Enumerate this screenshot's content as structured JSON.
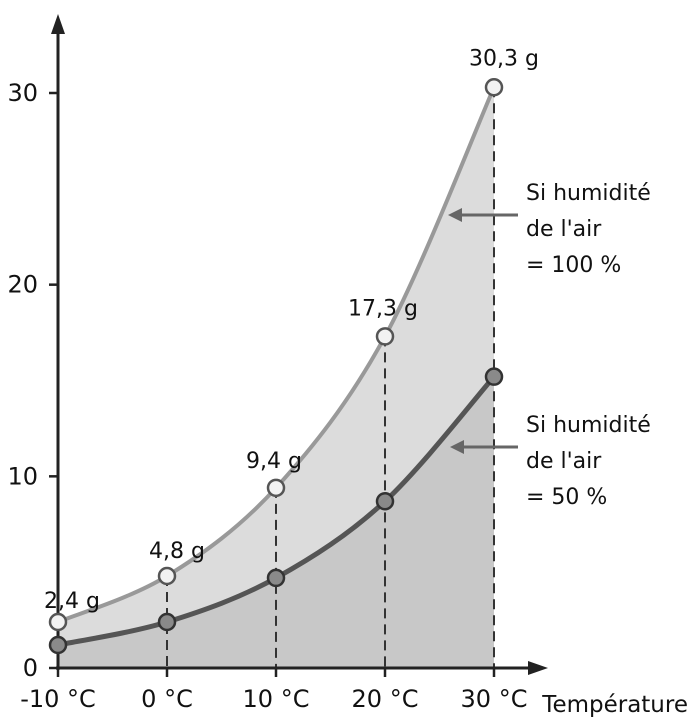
{
  "chart_data": {
    "type": "line",
    "title": "",
    "xlabel": "Température",
    "ylabel": "",
    "x": [
      -10,
      0,
      10,
      20,
      30
    ],
    "x_tick_labels": [
      "-10 °C",
      "0 °C",
      "10 °C",
      "20 °C",
      "30 °C"
    ],
    "y_ticks": [
      0,
      10,
      20,
      30
    ],
    "y_tick_labels": [
      "0",
      "10",
      "20",
      "30"
    ],
    "xlim": [
      -10,
      30
    ],
    "ylim": [
      0,
      30
    ],
    "grid": false,
    "series": [
      {
        "name": "",
        "values": [
          2.4,
          4.8,
          9.4,
          17.3,
          30.3
        ],
        "point_labels": [
          "2,4 g",
          "4,8 g",
          "9,4 g",
          "17,3 g",
          "30,3 g"
        ],
        "color": "#999999"
      },
      {
        "name": "",
        "values": [
          1.2,
          2.4,
          4.7,
          8.7,
          15.2
        ],
        "point_labels": [],
        "color": "#555555"
      }
    ],
    "annotations": [
      {
        "lines": [
          "Si humidité",
          "de l'air",
          "= 100 %"
        ],
        "series_index": 0
      },
      {
        "lines": [
          "Si humidité",
          "de l'air",
          "= 50 %"
        ],
        "series_index": 1
      }
    ]
  },
  "colors": {
    "axis": "#222222",
    "dashed_guide": "#333333",
    "fill_outer": "#dcdcdc",
    "fill_inner": "#c8c8c8",
    "marker_face_upper": "#f2f2f2",
    "marker_face_lower": "#8a8a8a",
    "annotation_arrow": "#666666"
  }
}
